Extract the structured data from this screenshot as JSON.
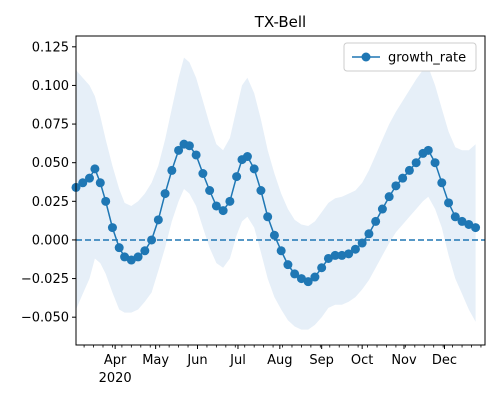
{
  "chart_data": {
    "type": "line",
    "title": "TX-Bell",
    "xlabel": "",
    "ylabel": "",
    "x_range": [
      "2020-03-03",
      "2020-12-31"
    ],
    "ylim": [
      -0.068,
      0.132
    ],
    "yticks": [
      -0.05,
      -0.025,
      0.0,
      0.025,
      0.05,
      0.075,
      0.1,
      0.125
    ],
    "ytick_labels": [
      "−0.050",
      "−0.025",
      "0.000",
      "0.025",
      "0.050",
      "0.075",
      "0.100",
      "0.125"
    ],
    "xticks": [
      {
        "date": "2020-04-01",
        "label": "Apr"
      },
      {
        "date": "2020-05-01",
        "label": "May"
      },
      {
        "date": "2020-06-01",
        "label": "Jun"
      },
      {
        "date": "2020-07-01",
        "label": "Jul"
      },
      {
        "date": "2020-08-01",
        "label": "Aug"
      },
      {
        "date": "2020-09-01",
        "label": "Sep"
      },
      {
        "date": "2020-10-01",
        "label": "Oct"
      },
      {
        "date": "2020-11-01",
        "label": "Nov"
      },
      {
        "date": "2020-12-01",
        "label": "Dec"
      }
    ],
    "year_label": "2020",
    "reference_line": {
      "y": 0.0,
      "style": "dashed",
      "color": "#1f77b4"
    },
    "legend": {
      "position": "upper-right",
      "entries": [
        "growth_rate"
      ]
    },
    "grid": false,
    "series": [
      {
        "name": "growth_rate",
        "color": "#1f77b4",
        "band_color": "#e6eff8",
        "points": [
          {
            "x": "2020-03-03",
            "y": 0.034,
            "lo": -0.045,
            "hi": 0.11
          },
          {
            "x": "2020-03-08",
            "y": 0.037,
            "lo": -0.035,
            "hi": 0.105
          },
          {
            "x": "2020-03-13",
            "y": 0.04,
            "lo": -0.025,
            "hi": 0.1
          },
          {
            "x": "2020-03-17",
            "y": 0.046,
            "lo": -0.012,
            "hi": 0.093
          },
          {
            "x": "2020-03-21",
            "y": 0.037,
            "lo": -0.015,
            "hi": 0.08
          },
          {
            "x": "2020-03-25",
            "y": 0.025,
            "lo": -0.022,
            "hi": 0.065
          },
          {
            "x": "2020-03-30",
            "y": 0.008,
            "lo": -0.034,
            "hi": 0.048
          },
          {
            "x": "2020-04-04",
            "y": -0.005,
            "lo": -0.045,
            "hi": 0.033
          },
          {
            "x": "2020-04-08",
            "y": -0.011,
            "lo": -0.047,
            "hi": 0.024
          },
          {
            "x": "2020-04-13",
            "y": -0.013,
            "lo": -0.047,
            "hi": 0.022
          },
          {
            "x": "2020-04-18",
            "y": -0.011,
            "lo": -0.045,
            "hi": 0.025
          },
          {
            "x": "2020-04-23",
            "y": -0.007,
            "lo": -0.04,
            "hi": 0.03
          },
          {
            "x": "2020-04-28",
            "y": 0.0,
            "lo": -0.034,
            "hi": 0.037
          },
          {
            "x": "2020-05-03",
            "y": 0.013,
            "lo": -0.02,
            "hi": 0.048
          },
          {
            "x": "2020-05-08",
            "y": 0.03,
            "lo": -0.005,
            "hi": 0.065
          },
          {
            "x": "2020-05-13",
            "y": 0.045,
            "lo": 0.012,
            "hi": 0.085
          },
          {
            "x": "2020-05-18",
            "y": 0.058,
            "lo": 0.025,
            "hi": 0.105
          },
          {
            "x": "2020-05-22",
            "y": 0.062,
            "lo": 0.033,
            "hi": 0.118
          },
          {
            "x": "2020-05-26",
            "y": 0.061,
            "lo": 0.03,
            "hi": 0.115
          },
          {
            "x": "2020-05-31",
            "y": 0.055,
            "lo": 0.022,
            "hi": 0.105
          },
          {
            "x": "2020-06-05",
            "y": 0.043,
            "lo": 0.008,
            "hi": 0.09
          },
          {
            "x": "2020-06-10",
            "y": 0.032,
            "lo": -0.005,
            "hi": 0.075
          },
          {
            "x": "2020-06-15",
            "y": 0.022,
            "lo": -0.015,
            "hi": 0.062
          },
          {
            "x": "2020-06-20",
            "y": 0.019,
            "lo": -0.018,
            "hi": 0.058
          },
          {
            "x": "2020-06-25",
            "y": 0.025,
            "lo": -0.012,
            "hi": 0.066
          },
          {
            "x": "2020-06-30",
            "y": 0.041,
            "lo": 0.003,
            "hi": 0.085
          },
          {
            "x": "2020-07-04",
            "y": 0.052,
            "lo": 0.012,
            "hi": 0.1
          },
          {
            "x": "2020-07-08",
            "y": 0.054,
            "lo": 0.015,
            "hi": 0.105
          },
          {
            "x": "2020-07-13",
            "y": 0.046,
            "lo": 0.008,
            "hi": 0.095
          },
          {
            "x": "2020-07-18",
            "y": 0.032,
            "lo": -0.008,
            "hi": 0.078
          },
          {
            "x": "2020-07-23",
            "y": 0.015,
            "lo": -0.025,
            "hi": 0.058
          },
          {
            "x": "2020-07-28",
            "y": 0.003,
            "lo": -0.037,
            "hi": 0.043
          },
          {
            "x": "2020-08-02",
            "y": -0.007,
            "lo": -0.045,
            "hi": 0.03
          },
          {
            "x": "2020-08-07",
            "y": -0.016,
            "lo": -0.052,
            "hi": 0.02
          },
          {
            "x": "2020-08-12",
            "y": -0.022,
            "lo": -0.056,
            "hi": 0.013
          },
          {
            "x": "2020-08-17",
            "y": -0.025,
            "lo": -0.058,
            "hi": 0.01
          },
          {
            "x": "2020-08-22",
            "y": -0.027,
            "lo": -0.058,
            "hi": 0.009
          },
          {
            "x": "2020-08-27",
            "y": -0.024,
            "lo": -0.055,
            "hi": 0.012
          },
          {
            "x": "2020-09-01",
            "y": -0.018,
            "lo": -0.05,
            "hi": 0.018
          },
          {
            "x": "2020-09-06",
            "y": -0.012,
            "lo": -0.044,
            "hi": 0.024
          },
          {
            "x": "2020-09-11",
            "y": -0.01,
            "lo": -0.042,
            "hi": 0.027
          },
          {
            "x": "2020-09-16",
            "y": -0.01,
            "lo": -0.042,
            "hi": 0.028
          },
          {
            "x": "2020-09-21",
            "y": -0.009,
            "lo": -0.04,
            "hi": 0.03
          },
          {
            "x": "2020-09-26",
            "y": -0.006,
            "lo": -0.037,
            "hi": 0.032
          },
          {
            "x": "2020-10-01",
            "y": -0.002,
            "lo": -0.032,
            "hi": 0.037
          },
          {
            "x": "2020-10-06",
            "y": 0.004,
            "lo": -0.026,
            "hi": 0.045
          },
          {
            "x": "2020-10-11",
            "y": 0.012,
            "lo": -0.018,
            "hi": 0.055
          },
          {
            "x": "2020-10-16",
            "y": 0.02,
            "lo": -0.01,
            "hi": 0.065
          },
          {
            "x": "2020-10-21",
            "y": 0.028,
            "lo": -0.002,
            "hi": 0.075
          },
          {
            "x": "2020-10-26",
            "y": 0.035,
            "lo": 0.005,
            "hi": 0.083
          },
          {
            "x": "2020-10-31",
            "y": 0.04,
            "lo": 0.01,
            "hi": 0.09
          },
          {
            "x": "2020-11-05",
            "y": 0.045,
            "lo": 0.015,
            "hi": 0.097
          },
          {
            "x": "2020-11-10",
            "y": 0.05,
            "lo": 0.02,
            "hi": 0.104
          },
          {
            "x": "2020-11-15",
            "y": 0.056,
            "lo": 0.025,
            "hi": 0.11
          },
          {
            "x": "2020-11-19",
            "y": 0.058,
            "lo": 0.028,
            "hi": 0.112
          },
          {
            "x": "2020-11-24",
            "y": 0.05,
            "lo": 0.02,
            "hi": 0.1
          },
          {
            "x": "2020-11-29",
            "y": 0.037,
            "lo": 0.008,
            "hi": 0.085
          },
          {
            "x": "2020-12-04",
            "y": 0.024,
            "lo": -0.01,
            "hi": 0.07
          },
          {
            "x": "2020-12-09",
            "y": 0.015,
            "lo": -0.025,
            "hi": 0.06
          },
          {
            "x": "2020-12-14",
            "y": 0.012,
            "lo": -0.035,
            "hi": 0.058
          },
          {
            "x": "2020-12-19",
            "y": 0.01,
            "lo": -0.045,
            "hi": 0.058
          },
          {
            "x": "2020-12-24",
            "y": 0.008,
            "lo": -0.053,
            "hi": 0.062
          }
        ]
      }
    ]
  }
}
